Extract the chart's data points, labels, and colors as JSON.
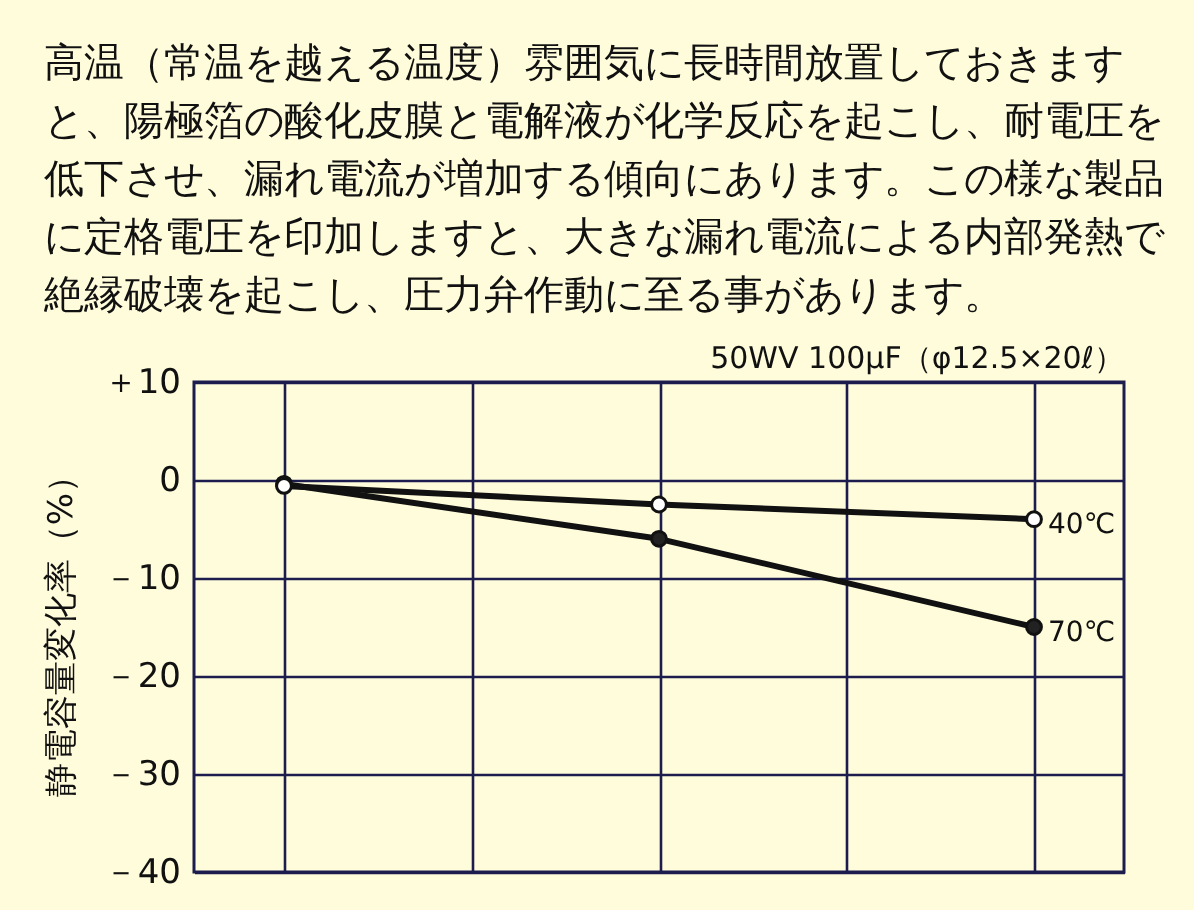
{
  "chart_data": {
    "type": "line",
    "title": "高温（常温を越える温度）雰囲気に長時間放置しておきますと、陽極箔の酸化皮膜と電解液が化学反応を起こし、耐電圧を低下させ、漏れ電流が増加する傾向にあります。この様な製品に定格電圧を印加しますと、大きな漏れ電流による内部発熱で絶縁破壊を起こし、圧力弁作動に至る事があります。",
    "subtitle": "50WV 100μF（φ12.5×20ℓ）",
    "ylabel": "静電容量変化率（%）",
    "categories": [
      null,
      null,
      null,
      null,
      null
    ],
    "series": [
      {
        "name": "40℃",
        "color": "#111111",
        "colors": [
          "#ffffff",
          null,
          "#ffffff",
          null,
          "#ffffff"
        ],
        "values": [
          -0.6,
          null,
          -2.5,
          null,
          -4
        ]
      },
      {
        "name": "70℃",
        "color": "#111111",
        "colors": [
          "#222222",
          null,
          "#222222",
          null,
          "#222222"
        ],
        "values": [
          -0.4,
          null,
          -6,
          null,
          -15
        ]
      }
    ],
    "ylim": [
      -40,
      10
    ],
    "yticks": [
      {
        "value": 10,
        "label": "＋10"
      },
      0,
      {
        "value": -10,
        "label": "－10"
      },
      {
        "value": -20,
        "label": "－20"
      },
      {
        "value": -30,
        "label": "－30"
      },
      {
        "value": -40,
        "label": "－40"
      }
    ],
    "grid": true,
    "marker": "circle",
    "tick_labels": "y"
  }
}
